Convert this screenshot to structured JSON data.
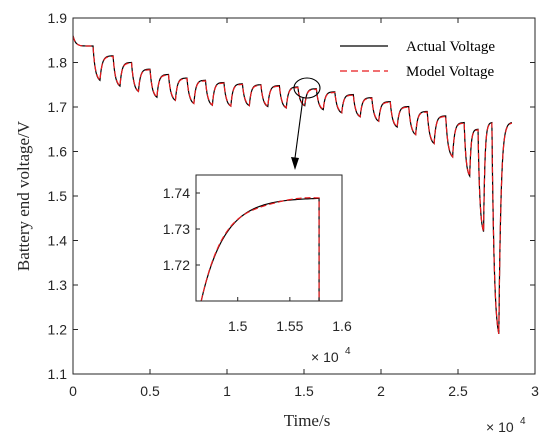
{
  "chart_data": {
    "type": "line",
    "xlabel": "Time/s",
    "ylabel": "Battery end voltage/V",
    "xlim": [
      0,
      30000
    ],
    "ylim": [
      1.1,
      1.9
    ],
    "x_ticks": [
      "0",
      "0.5",
      "1",
      "1.5",
      "2",
      "2.5",
      "3"
    ],
    "y_ticks": [
      "1.1",
      "1.2",
      "1.3",
      "1.4",
      "1.5",
      "1.6",
      "1.7",
      "1.8",
      "1.9"
    ],
    "x_exponent": {
      "base": "× 10",
      "power": "4"
    },
    "legend": {
      "placement": "top-right"
    },
    "colors": {
      "actual": "#000000",
      "model": "#e8191c"
    },
    "series": [
      {
        "name": "Actual Voltage",
        "style": "solid",
        "color": "#000000"
      },
      {
        "name": "Model Voltage",
        "style": "dashed",
        "color": "#e8191c"
      }
    ],
    "pulses": {
      "start_times": [
        1300,
        2600,
        3800,
        5000,
        6200,
        7400,
        8600,
        9800,
        11000,
        12200,
        13400,
        14600,
        15800,
        17000,
        18200,
        19400,
        20600,
        21800,
        23000,
        24200,
        25400,
        26300,
        27200
      ],
      "rest_voltage": [
        1.837,
        1.815,
        1.8,
        1.785,
        1.773,
        1.765,
        1.76,
        1.755,
        1.752,
        1.75,
        1.748,
        1.745,
        1.741,
        1.734,
        1.728,
        1.721,
        1.712,
        1.701,
        1.69,
        1.68,
        1.665,
        1.65,
        1.665
      ],
      "min_voltage": [
        1.76,
        1.747,
        1.735,
        1.722,
        1.715,
        1.708,
        1.704,
        1.702,
        1.703,
        1.701,
        1.698,
        1.703,
        1.694,
        1.687,
        1.678,
        1.668,
        1.655,
        1.638,
        1.618,
        1.588,
        1.545,
        1.42,
        1.19
      ]
    },
    "start": {
      "t": 0,
      "v": 1.86
    },
    "end": {
      "t": 28500,
      "v": 1.665
    },
    "inset": {
      "xlim": [
        14600,
        16000
      ],
      "ylim": [
        1.71,
        1.745
      ],
      "x_ticks": [
        "1.5",
        "1.55",
        "1.6"
      ],
      "y_ticks": [
        "1.72",
        "1.73",
        "1.74"
      ],
      "x_exponent": {
        "base": "× 10",
        "power": "4"
      },
      "curve": {
        "t_start": 14650,
        "t_end": 15780,
        "v_start": 1.71,
        "v_end": 1.7385
      }
    }
  }
}
